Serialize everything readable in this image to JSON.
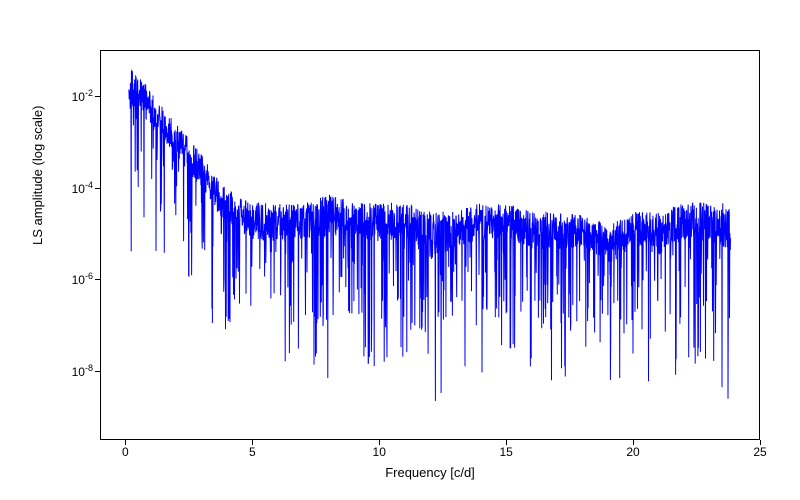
{
  "periodogram_chart": {
    "type": "line",
    "xlabel": "Frequency [c/d]",
    "ylabel": "LS amplitude (log scale)",
    "label_fontsize": 13,
    "tick_fontsize": 12,
    "xlim": [
      -1,
      25
    ],
    "ylim_log10": [
      -9.5,
      -1
    ],
    "xticks": [
      0,
      5,
      10,
      15,
      20,
      25
    ],
    "ytick_exponents": [
      -8,
      -6,
      -4,
      -2
    ],
    "yscale": "log",
    "line_color": "#0000ff",
    "line_width": 1.0,
    "background_color": "#ffffff",
    "border_color": "#000000",
    "freq_min": 0.1,
    "freq_max": 23.8,
    "envelope_top_log10": [
      [
        0.2,
        -1.4
      ],
      [
        0.5,
        -1.5
      ],
      [
        1.0,
        -1.9
      ],
      [
        1.5,
        -2.2
      ],
      [
        2.0,
        -2.6
      ],
      [
        2.5,
        -2.9
      ],
      [
        3.0,
        -3.3
      ],
      [
        3.5,
        -3.7
      ],
      [
        4.0,
        -4.0
      ],
      [
        4.5,
        -4.2
      ],
      [
        5.0,
        -4.3
      ],
      [
        6.0,
        -4.3
      ],
      [
        7.0,
        -4.3
      ],
      [
        8.0,
        -4.1
      ],
      [
        9.0,
        -4.3
      ],
      [
        10.0,
        -4.3
      ],
      [
        11.0,
        -4.3
      ],
      [
        12.0,
        -4.5
      ],
      [
        13.0,
        -4.5
      ],
      [
        14.0,
        -4.3
      ],
      [
        15.0,
        -4.3
      ],
      [
        16.0,
        -4.5
      ],
      [
        17.0,
        -4.5
      ],
      [
        18.0,
        -4.5
      ],
      [
        19.0,
        -4.8
      ],
      [
        20.0,
        -4.5
      ],
      [
        21.0,
        -4.5
      ],
      [
        22.0,
        -4.3
      ],
      [
        23.0,
        -4.3
      ],
      [
        23.8,
        -4.3
      ]
    ],
    "envelope_bottom_log10": [
      [
        0.2,
        -5.3
      ],
      [
        0.5,
        -4.5
      ],
      [
        1.0,
        -5.0
      ],
      [
        1.5,
        -5.3
      ],
      [
        2.0,
        -5.5
      ],
      [
        2.5,
        -6.0
      ],
      [
        3.0,
        -6.3
      ],
      [
        3.5,
        -6.8
      ],
      [
        4.0,
        -7.0
      ],
      [
        4.5,
        -7.2
      ],
      [
        5.0,
        -7.5
      ],
      [
        6.0,
        -7.8
      ],
      [
        7.0,
        -7.5
      ],
      [
        8.0,
        -8.0
      ],
      [
        9.0,
        -7.3
      ],
      [
        10.0,
        -7.8
      ],
      [
        11.0,
        -7.5
      ],
      [
        12.0,
        -9.0
      ],
      [
        13.0,
        -7.5
      ],
      [
        14.0,
        -7.8
      ],
      [
        15.0,
        -7.5
      ],
      [
        16.0,
        -7.8
      ],
      [
        17.0,
        -8.0
      ],
      [
        18.0,
        -7.5
      ],
      [
        19.0,
        -8.3
      ],
      [
        20.0,
        -7.5
      ],
      [
        21.0,
        -8.3
      ],
      [
        22.0,
        -7.5
      ],
      [
        23.0,
        -7.8
      ],
      [
        23.8,
        -8.5
      ]
    ],
    "seed": 42,
    "n_points": 2400
  }
}
